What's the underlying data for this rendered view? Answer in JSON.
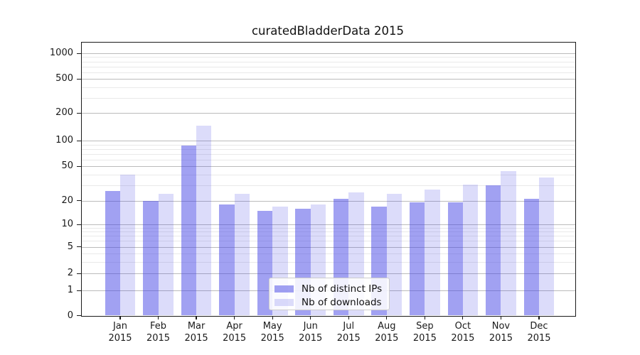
{
  "chart_data": {
    "type": "bar",
    "title": "curatedBladderData 2015",
    "categories": [
      "Jan",
      "Feb",
      "Mar",
      "Apr",
      "May",
      "Jun",
      "Jul",
      "Aug",
      "Sep",
      "Oct",
      "Nov",
      "Dec"
    ],
    "x_year": "2015",
    "series": [
      {
        "name": "Nb of distinct IPs",
        "color": "rgba(68,68,230,0.5)",
        "values": [
          26,
          20,
          88,
          18,
          15,
          16,
          21,
          17,
          19,
          19,
          30,
          21
        ]
      },
      {
        "name": "Nb of downloads",
        "color": "rgba(68,68,230,0.19)",
        "values": [
          40,
          24,
          145,
          24,
          17,
          18,
          25,
          24,
          27,
          31,
          44,
          37
        ]
      }
    ],
    "yticks": [
      0,
      1,
      2,
      5,
      10,
      20,
      50,
      100,
      200,
      500,
      1000
    ],
    "ylim": [
      0,
      1400
    ],
    "xlabel": "",
    "ylabel": "",
    "scale": "symlog-like",
    "grid": true,
    "legend_position": "lower center"
  },
  "colors": {
    "background": "#ffffff",
    "axis": "#1a1a1a",
    "major_grid": "#bbbbbb",
    "minor_grid": "#e9e9e9",
    "legend_border": "#cccccc",
    "bar_distinct_ips": "rgba(68,68,230,0.5)",
    "bar_downloads": "rgba(68,68,230,0.19)"
  }
}
